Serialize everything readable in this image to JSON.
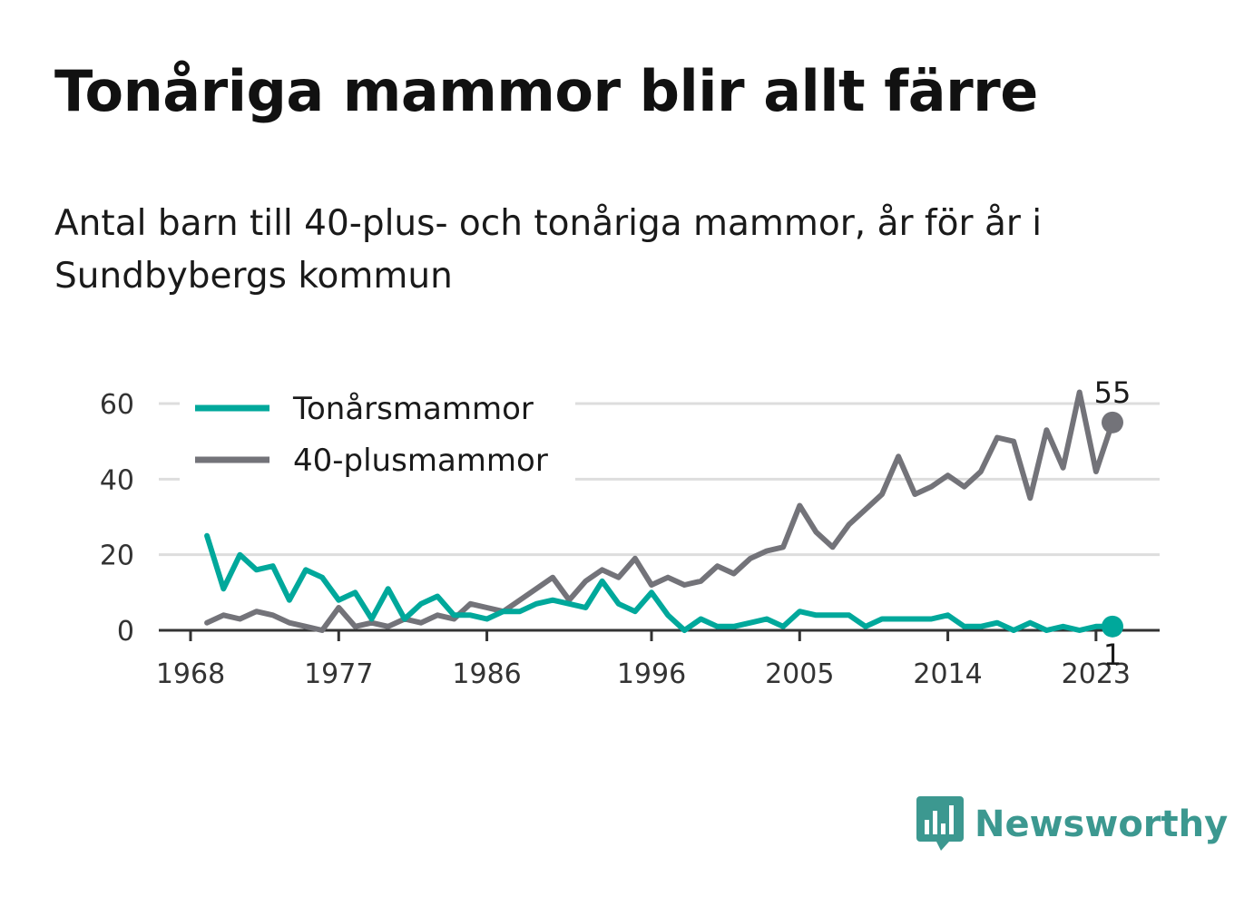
{
  "title": "Tonåriga mammor blir allt färre",
  "subtitle": "Antal barn till 40-plus- och tonåriga mammor, år för år i Sundbybergs kommun",
  "brand": {
    "name": "Newsworthy",
    "color": "#3c9890",
    "icon": "bar-chart-speech-bubble-icon"
  },
  "chart_data": {
    "type": "line",
    "title": "Tonåriga mammor blir allt färre",
    "subtitle": "Antal barn till 40-plus- och tonåriga mammor, år för år i Sundbybergs kommun",
    "xlabel": "",
    "ylabel": "",
    "xlim": [
      1966,
      2027
    ],
    "ylim": [
      0,
      63
    ],
    "x_ticks": [
      1968,
      1977,
      1986,
      1996,
      2005,
      2014,
      2023
    ],
    "y_ticks": [
      0,
      20,
      40,
      60
    ],
    "grid": true,
    "legend_position": "top-left",
    "x": [
      1969,
      1970,
      1971,
      1972,
      1973,
      1974,
      1975,
      1976,
      1977,
      1978,
      1979,
      1980,
      1981,
      1982,
      1983,
      1984,
      1985,
      1986,
      1987,
      1988,
      1989,
      1990,
      1991,
      1992,
      1993,
      1994,
      1995,
      1996,
      1997,
      1998,
      1999,
      2000,
      2001,
      2002,
      2003,
      2004,
      2005,
      2006,
      2007,
      2008,
      2009,
      2010,
      2011,
      2012,
      2013,
      2014,
      2015,
      2016,
      2017,
      2018,
      2019,
      2020,
      2021,
      2022,
      2023,
      2024
    ],
    "series": [
      {
        "name": "Tonårsmammor",
        "color": "#00a89b",
        "values": [
          25,
          11,
          20,
          16,
          17,
          8,
          16,
          14,
          8,
          10,
          3,
          11,
          3,
          7,
          9,
          4,
          4,
          3,
          5,
          5,
          7,
          8,
          7,
          6,
          13,
          7,
          5,
          10,
          4,
          0,
          3,
          1,
          1,
          2,
          3,
          1,
          5,
          4,
          4,
          4,
          1,
          3,
          3,
          3,
          3,
          4,
          1,
          1,
          2,
          0,
          2,
          0,
          1,
          0,
          1,
          1
        ],
        "end_label": "1"
      },
      {
        "name": "40-plusmammor",
        "color": "#737379",
        "values": [
          2,
          4,
          3,
          5,
          4,
          2,
          1,
          0,
          6,
          1,
          2,
          1,
          3,
          2,
          4,
          3,
          7,
          6,
          5,
          8,
          11,
          14,
          8,
          13,
          16,
          14,
          19,
          12,
          14,
          12,
          13,
          17,
          15,
          19,
          21,
          22,
          33,
          26,
          22,
          28,
          32,
          36,
          46,
          36,
          38,
          41,
          38,
          42,
          51,
          50,
          35,
          53,
          43,
          63,
          42,
          55
        ],
        "end_label": "55"
      }
    ]
  }
}
